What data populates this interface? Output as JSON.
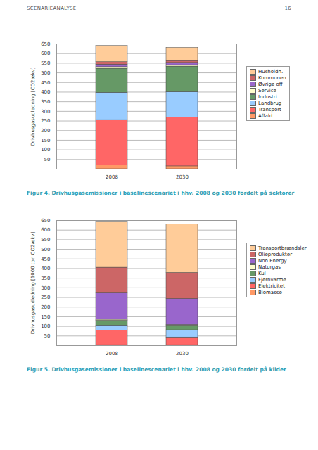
{
  "header": {
    "title": "SCENARIEANALYSE",
    "page": "16"
  },
  "chart_data": [
    {
      "type": "bar",
      "stacked": true,
      "grid": true,
      "legend": "right",
      "caption": "Figur 4. Drivhusgasemissioner i baselinescenariet i hhv. 2008 og 2030 fordelt på sektorer",
      "y_label": "Drivhusgasudledning [CO2ækv]",
      "categories": [
        "2008",
        "2030"
      ],
      "ylim": [
        0,
        650
      ],
      "yticks": [
        50,
        100,
        150,
        200,
        250,
        300,
        350,
        400,
        450,
        500,
        550,
        600,
        650
      ],
      "series": [
        {
          "name": "Affald",
          "color": "#FF9966",
          "values": [
            20,
            15
          ]
        },
        {
          "name": "Transport",
          "color": "#FF6666",
          "values": [
            235,
            253
          ]
        },
        {
          "name": "Landbrug",
          "color": "#99CCFF",
          "values": [
            142,
            132
          ]
        },
        {
          "name": "Industri",
          "color": "#669966",
          "values": [
            125,
            133
          ]
        },
        {
          "name": "Service",
          "color": "#FFFFCC",
          "values": [
            8,
            7
          ]
        },
        {
          "name": "Øvrige off",
          "color": "#9966CC",
          "values": [
            13,
            12
          ]
        },
        {
          "name": "Kommunen",
          "color": "#CC6666",
          "values": [
            13,
            10
          ]
        },
        {
          "name": "Husholdn.",
          "color": "#FFCC99",
          "values": [
            84,
            68
          ]
        }
      ]
    },
    {
      "type": "bar",
      "stacked": true,
      "grid": true,
      "legend": "right",
      "caption": "Figur 5. Drivhusgasemissioner i baselinescenariet i hhv. 2008 og 2030 fordelt på kilder",
      "y_label": "Drivhusgasudledning [1000 ton CO2ækv]",
      "categories": [
        "2008",
        "2030"
      ],
      "ylim": [
        0,
        650
      ],
      "yticks": [
        50,
        100,
        150,
        200,
        250,
        300,
        350,
        400,
        450,
        500,
        550,
        600,
        650
      ],
      "series": [
        {
          "name": "Biomasse",
          "color": "#FF9966",
          "values": [
            3,
            3
          ]
        },
        {
          "name": "Elektricitet",
          "color": "#FF6666",
          "values": [
            75,
            40
          ]
        },
        {
          "name": "Fjernvarme",
          "color": "#99CCFF",
          "values": [
            27,
            37
          ]
        },
        {
          "name": "Kul",
          "color": "#669966",
          "values": [
            25,
            25
          ]
        },
        {
          "name": "Naturgas",
          "color": "#FFFFCC",
          "values": [
            5,
            3
          ]
        },
        {
          "name": "Non Energy",
          "color": "#9966CC",
          "values": [
            140,
            135
          ]
        },
        {
          "name": "Olieprodukter",
          "color": "#CC6666",
          "values": [
            130,
            135
          ]
        },
        {
          "name": "Transportbrændsler",
          "color": "#FFCC99",
          "values": [
            235,
            252
          ]
        }
      ]
    }
  ]
}
